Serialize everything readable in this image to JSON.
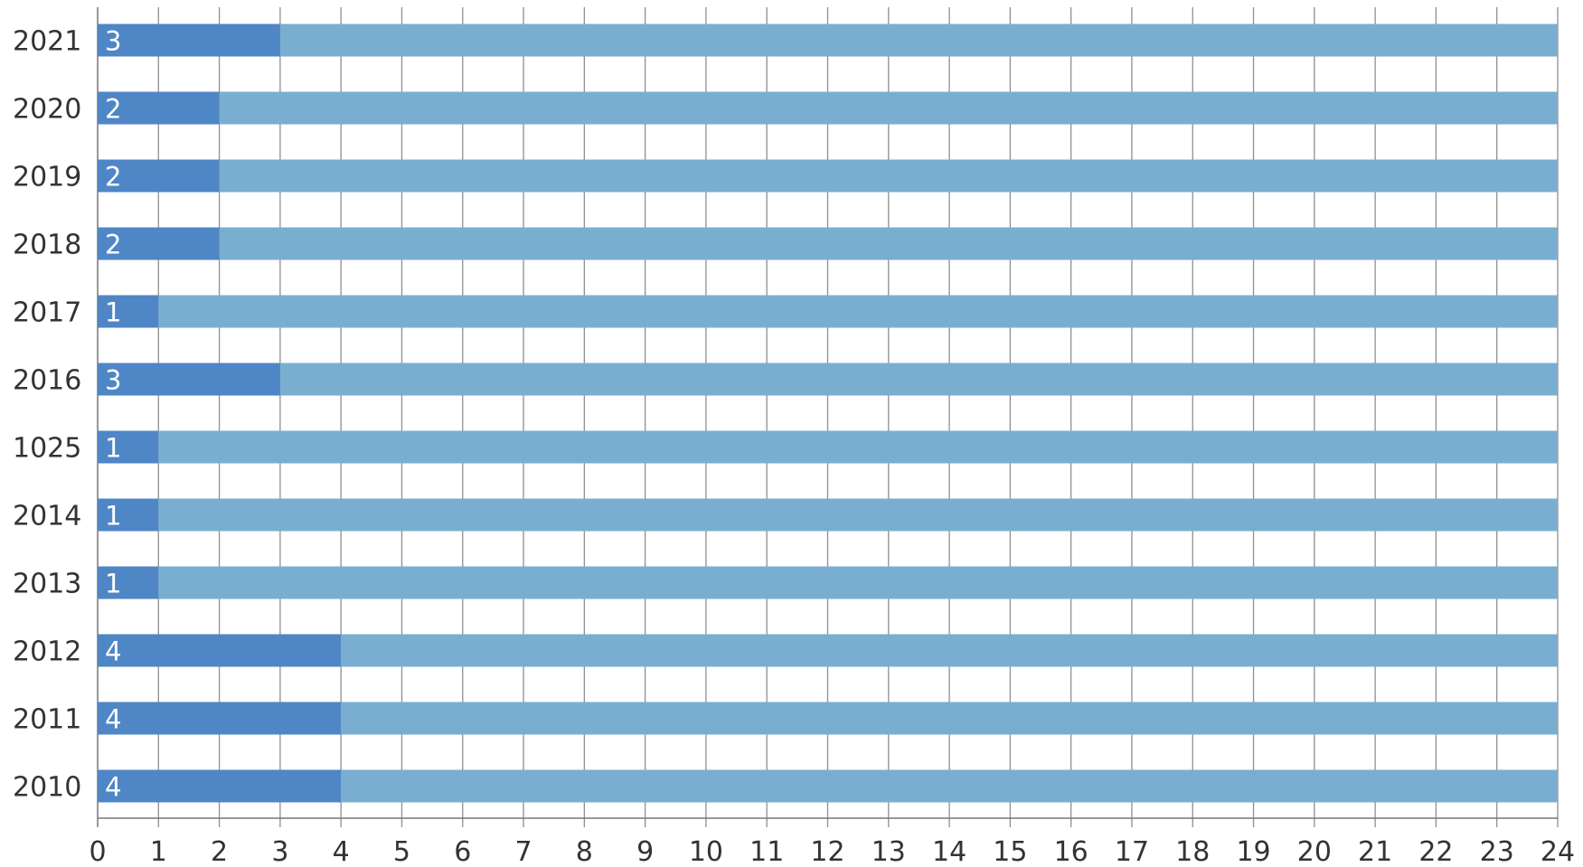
{
  "chart_data": {
    "type": "bar",
    "orientation": "horizontal",
    "stacked": true,
    "categories": [
      "2021",
      "2020",
      "2019",
      "2018",
      "2017",
      "2016",
      "1025",
      "2014",
      "2013",
      "2012",
      "2011",
      "2010"
    ],
    "series": [
      {
        "values": [
          3,
          2,
          2,
          2,
          1,
          3,
          1,
          1,
          1,
          4,
          4,
          4
        ],
        "color": "#4f86c6"
      },
      {
        "values": [
          21,
          22,
          22,
          22,
          23,
          21,
          23,
          23,
          23,
          20,
          20,
          20
        ],
        "color": "#7aaed1"
      }
    ],
    "value_labels": [
      "3",
      "2",
      "2",
      "2",
      "1",
      "3",
      "1",
      "1",
      "1",
      "4",
      "4",
      "4"
    ],
    "xlim": [
      0,
      24
    ],
    "xticks": [
      "0",
      "1",
      "2",
      "3",
      "4",
      "5",
      "6",
      "7",
      "8",
      "9",
      "10",
      "11",
      "12",
      "13",
      "14",
      "15",
      "16",
      "17",
      "18",
      "19",
      "20",
      "21",
      "22",
      "23",
      "24"
    ],
    "grid": true,
    "legend": "none",
    "title": "",
    "xlabel": "",
    "ylabel": ""
  }
}
